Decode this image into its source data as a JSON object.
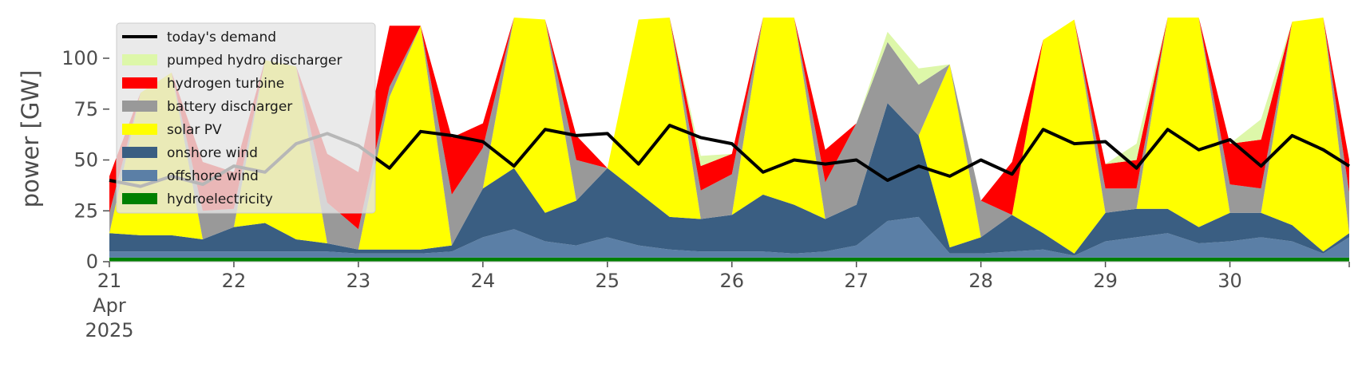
{
  "chart_data": {
    "type": "area",
    "ylabel": "power [GW]",
    "ylim": [
      0,
      120
    ],
    "yticks": [
      0,
      25,
      50,
      75,
      100
    ],
    "xlim": [
      "2025-04-21 00:00",
      "2025-04-30 23:00"
    ],
    "xticks": [
      {
        "date": "2025-04-21",
        "label": "21",
        "sub1": "Apr",
        "sub2": "2025"
      },
      {
        "date": "2025-04-22",
        "label": "22"
      },
      {
        "date": "2025-04-23",
        "label": "23"
      },
      {
        "date": "2025-04-24",
        "label": "24"
      },
      {
        "date": "2025-04-25",
        "label": "25"
      },
      {
        "date": "2025-04-26",
        "label": "26"
      },
      {
        "date": "2025-04-27",
        "label": "27"
      },
      {
        "date": "2025-04-28",
        "label": "28"
      },
      {
        "date": "2025-04-29",
        "label": "29"
      },
      {
        "date": "2025-04-30",
        "label": "30"
      }
    ],
    "grid": false,
    "legend": "top-left",
    "x": [
      "2025-04-21 00:00",
      "2025-04-21 06:00",
      "2025-04-21 12:00",
      "2025-04-21 18:00",
      "2025-04-22 00:00",
      "2025-04-22 06:00",
      "2025-04-22 12:00",
      "2025-04-22 18:00",
      "2025-04-23 00:00",
      "2025-04-23 06:00",
      "2025-04-23 12:00",
      "2025-04-23 18:00",
      "2025-04-24 00:00",
      "2025-04-24 06:00",
      "2025-04-24 12:00",
      "2025-04-24 18:00",
      "2025-04-25 00:00",
      "2025-04-25 06:00",
      "2025-04-25 12:00",
      "2025-04-25 18:00",
      "2025-04-26 00:00",
      "2025-04-26 06:00",
      "2025-04-26 12:00",
      "2025-04-26 18:00",
      "2025-04-27 00:00",
      "2025-04-27 06:00",
      "2025-04-27 12:00",
      "2025-04-27 18:00",
      "2025-04-28 00:00",
      "2025-04-28 06:00",
      "2025-04-28 12:00",
      "2025-04-28 18:00",
      "2025-04-29 00:00",
      "2025-04-29 06:00",
      "2025-04-29 12:00",
      "2025-04-29 18:00",
      "2025-04-30 00:00",
      "2025-04-30 06:00",
      "2025-04-30 12:00",
      "2025-04-30 18:00",
      "2025-04-30 23:00"
    ],
    "series": [
      {
        "name": "hydroelectricity",
        "color": "#008000",
        "values": [
          2,
          2,
          2,
          2,
          2,
          2,
          2,
          2,
          2,
          2,
          2,
          2,
          2,
          2,
          2,
          2,
          2,
          2,
          2,
          2,
          2,
          2,
          2,
          2,
          2,
          2,
          2,
          2,
          2,
          2,
          2,
          2,
          2,
          2,
          2,
          2,
          2,
          2,
          2,
          2,
          2
        ]
      },
      {
        "name": "offshore wind",
        "color": "#5b7fa6",
        "values": [
          3,
          3,
          3,
          3,
          3,
          3,
          3,
          3,
          2,
          2,
          2,
          3,
          10,
          14,
          8,
          6,
          10,
          6,
          4,
          3,
          3,
          3,
          2,
          3,
          6,
          18,
          20,
          2,
          2,
          3,
          4,
          1,
          8,
          10,
          12,
          7,
          8,
          10,
          8,
          2,
          10
        ]
      },
      {
        "name": "onshore wind",
        "color": "#3a5e82",
        "values": [
          9,
          8,
          8,
          6,
          12,
          14,
          6,
          4,
          2,
          2,
          2,
          3,
          24,
          30,
          14,
          22,
          34,
          26,
          16,
          16,
          18,
          28,
          24,
          16,
          20,
          58,
          40,
          3,
          8,
          18,
          8,
          1,
          14,
          14,
          12,
          8,
          14,
          12,
          8,
          1,
          2
        ]
      },
      {
        "name": "solar PV",
        "color": "#ffff00",
        "values": [
          0,
          70,
          80,
          0,
          0,
          80,
          85,
          0,
          0,
          75,
          110,
          0,
          0,
          80,
          95,
          0,
          0,
          85,
          100,
          0,
          0,
          90,
          100,
          0,
          0,
          0,
          0,
          90,
          0,
          0,
          95,
          115,
          0,
          0,
          100,
          110,
          0,
          0,
          100,
          115,
          0
        ]
      },
      {
        "name": "battery discharger",
        "color": "#999999",
        "values": [
          10,
          0,
          0,
          14,
          9,
          0,
          0,
          20,
          10,
          5,
          0,
          25,
          20,
          0,
          0,
          20,
          0,
          0,
          0,
          14,
          20,
          0,
          0,
          18,
          40,
          30,
          25,
          0,
          18,
          0,
          0,
          0,
          12,
          10,
          0,
          0,
          14,
          12,
          0,
          0,
          20
        ]
      },
      {
        "name": "hydrogen turbine",
        "color": "#ff0000",
        "values": [
          18,
          0,
          0,
          24,
          18,
          0,
          0,
          24,
          28,
          30,
          0,
          28,
          12,
          0,
          0,
          12,
          0,
          0,
          0,
          12,
          10,
          0,
          0,
          16,
          0,
          0,
          0,
          0,
          0,
          26,
          0,
          0,
          12,
          14,
          0,
          0,
          20,
          24,
          0,
          0,
          16
        ]
      },
      {
        "name": "pumped hydro discharger",
        "color": "#ddf7a9",
        "values": [
          0,
          0,
          0,
          0,
          0,
          0,
          0,
          0,
          0,
          0,
          0,
          0,
          0,
          0,
          0,
          0,
          0,
          0,
          0,
          5,
          0,
          0,
          0,
          0,
          0,
          5,
          8,
          0,
          0,
          0,
          0,
          0,
          0,
          8,
          0,
          0,
          0,
          10,
          0,
          0,
          0
        ]
      }
    ],
    "demand": {
      "name": "today's demand",
      "color": "#000000",
      "values": [
        40,
        37,
        42,
        38,
        47,
        44,
        58,
        63,
        57,
        46,
        64,
        62,
        59,
        47,
        65,
        62,
        63,
        48,
        67,
        61,
        58,
        44,
        50,
        48,
        50,
        40,
        47,
        42,
        50,
        43,
        65,
        58,
        59,
        46,
        65,
        55,
        60,
        47,
        62,
        55,
        47
      ]
    },
    "legend_entries": [
      "today's demand",
      "pumped hydro discharger",
      "hydrogen turbine",
      "battery discharger",
      "solar PV",
      "onshore wind",
      "offshore wind",
      "hydroelectricity"
    ]
  }
}
